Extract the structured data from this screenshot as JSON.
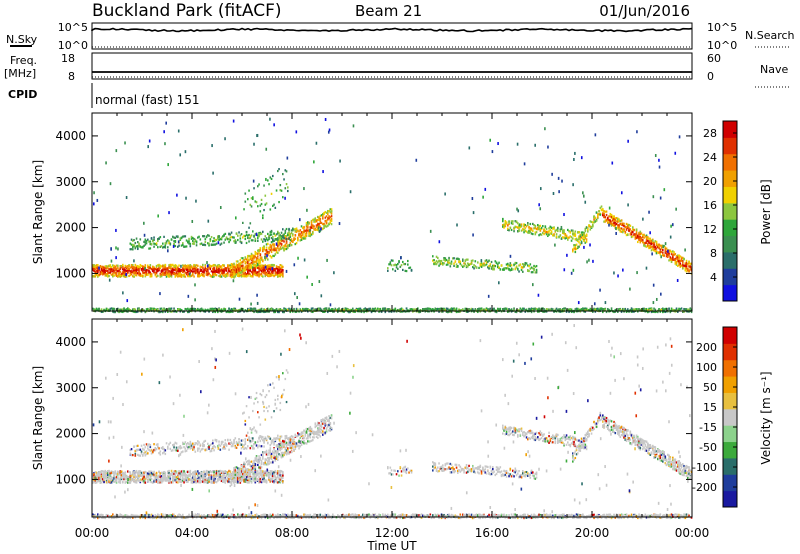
{
  "header": {
    "station": "Buckland Park (fitACF)",
    "beam": "Beam 21",
    "date": "01/Jun/2016"
  },
  "aux_panels": {
    "nsky": {
      "label": "N.Sky",
      "ticks": [
        "10^5",
        "10^0"
      ],
      "right_label": "N.Search",
      "right_ticks": [
        "10^5",
        "10^0"
      ]
    },
    "freq": {
      "label": "Freq.",
      "unit": "[MHz]",
      "ticks": [
        "18",
        "8"
      ],
      "right_label": "Nave",
      "right_ticks": [
        "60",
        "0"
      ]
    },
    "cpid": {
      "label": "CPID",
      "value": "normal (fast) 151"
    }
  },
  "colors": {
    "power_scale": [
      "#1010e0",
      "#1f3d9c",
      "#2a6e6a",
      "#3a8f50",
      "#2ea63a",
      "#8cc63f",
      "#f0d000",
      "#f0a000",
      "#f07000",
      "#e03000",
      "#d00000"
    ],
    "velocity_scale": [
      "#1a1aa0",
      "#1f3d9c",
      "#2a6e6a",
      "#3caa3c",
      "#8cd28c",
      "#c8c8c8",
      "#e8c040",
      "#f0a000",
      "#f07000",
      "#e03000",
      "#d00000"
    ]
  },
  "chart_data": [
    {
      "type": "heatmap",
      "name": "power",
      "ylabel": "Slant Range [km]",
      "yticks": [
        1000,
        2000,
        3000,
        4000
      ],
      "ylim": [
        180,
        4500
      ],
      "xlim": [
        0,
        24
      ],
      "colorbar": {
        "label": "Power [dB]",
        "ticks": [
          "4",
          "8",
          "12",
          "16",
          "20",
          "24",
          "28"
        ],
        "range": [
          0,
          30
        ]
      }
    },
    {
      "type": "heatmap",
      "name": "velocity",
      "ylabel": "Slant Range [km]",
      "yticks": [
        1000,
        2000,
        3000,
        4000
      ],
      "ylim": [
        180,
        4500
      ],
      "xlim": [
        0,
        24
      ],
      "colorbar": {
        "label": "Velocity [m s⁻¹]",
        "ticks": [
          "200",
          "100",
          "50",
          "15",
          "-15",
          "-50",
          "-100",
          "-200"
        ]
      }
    }
  ],
  "xaxis": {
    "label": "Time UT",
    "ticks": [
      "00:00",
      "04:00",
      "08:00",
      "12:00",
      "16:00",
      "20:00",
      "00:00"
    ]
  }
}
